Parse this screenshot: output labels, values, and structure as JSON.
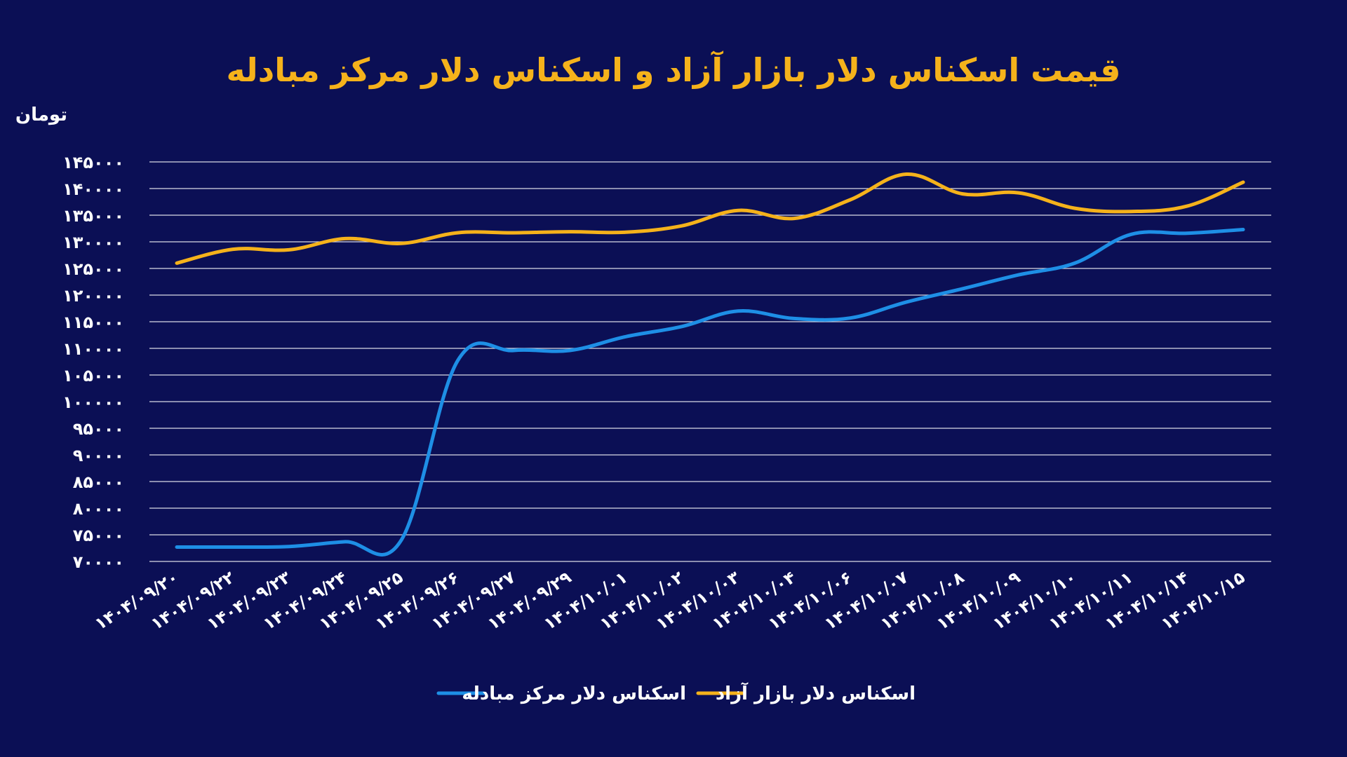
{
  "chart_data": {
    "type": "line",
    "title": "قیمت اسکناس دلار بازار آزاد و اسکناس دلار مرکز مبادله",
    "ylabel": "تومان",
    "xlabel": "",
    "ylim": [
      70000,
      145000
    ],
    "yticks": [
      145000,
      140000,
      135000,
      130000,
      125000,
      120000,
      115000,
      110000,
      105000,
      100000,
      95000,
      90000,
      85000,
      80000,
      75000,
      70000
    ],
    "ytick_labels": [
      "۱۴۵۰۰۰",
      "۱۴۰۰۰۰",
      "۱۳۵۰۰۰",
      "۱۳۰۰۰۰",
      "۱۲۵۰۰۰",
      "۱۲۰۰۰۰",
      "۱۱۵۰۰۰",
      "۱۱۰۰۰۰",
      "۱۰۵۰۰۰",
      "۱۰۰۰۰۰",
      "۹۵۰۰۰",
      "۹۰۰۰۰",
      "۸۵۰۰۰",
      "۸۰۰۰۰",
      "۷۵۰۰۰",
      "۷۰۰۰۰"
    ],
    "grid": true,
    "legend_position": "bottom",
    "categories": [
      "۱۴۰۴/۰۹/۲۰",
      "۱۴۰۴/۰۹/۲۲",
      "۱۴۰۴/۰۹/۲۳",
      "۱۴۰۴/۰۹/۲۴",
      "۱۴۰۴/۰۹/۲۵",
      "۱۴۰۴/۰۹/۲۶",
      "۱۴۰۴/۰۹/۲۷",
      "۱۴۰۴/۰۹/۲۹",
      "۱۴۰۴/۱۰/۰۱",
      "۱۴۰۴/۱۰/۰۲",
      "۱۴۰۴/۱۰/۰۳",
      "۱۴۰۴/۱۰/۰۴",
      "۱۴۰۴/۱۰/۰۶",
      "۱۴۰۴/۱۰/۰۷",
      "۱۴۰۴/۱۰/۰۸",
      "۱۴۰۴/۱۰/۰۹",
      "۱۴۰۴/۱۰/۱۰",
      "۱۴۰۴/۱۰/۱۱",
      "۱۴۰۴/۱۰/۱۴",
      "۱۴۰۴/۱۰/۱۵"
    ],
    "series": [
      {
        "name": "اسکناس دلار بازار آزاد",
        "color": "#f5b21b",
        "values": [
          126000,
          128600,
          128500,
          130600,
          129700,
          131700,
          131700,
          131900,
          131800,
          133000,
          135900,
          134400,
          137900,
          142700,
          139000,
          139200,
          136300,
          135700,
          136700,
          141200
        ]
      },
      {
        "name": "اسکناس دلار مرکز مبادله",
        "color": "#1e8fe6",
        "values": [
          72700,
          72700,
          72800,
          73700,
          74000,
          107600,
          109600,
          109600,
          112200,
          114100,
          117000,
          115600,
          115700,
          118700,
          121200,
          123800,
          126000,
          131400,
          131600,
          132300
        ]
      }
    ]
  }
}
